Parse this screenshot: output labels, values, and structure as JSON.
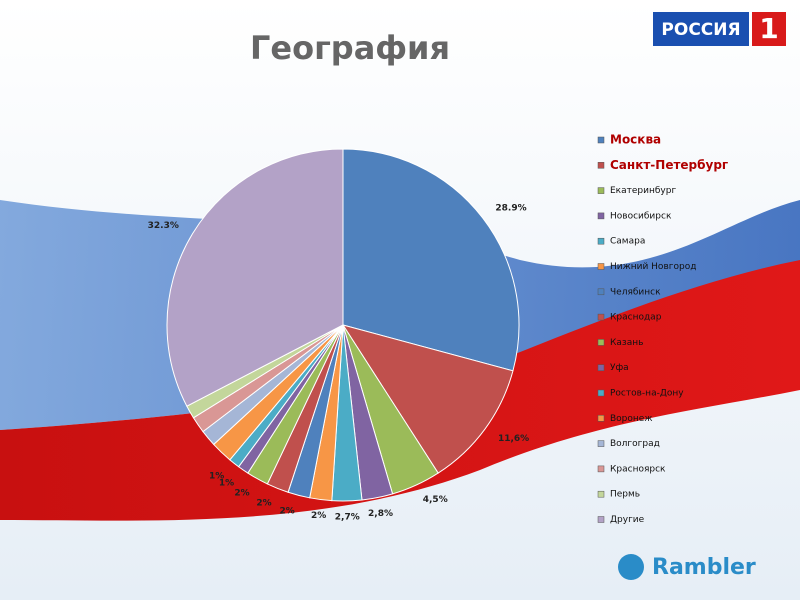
{
  "chart_data": {
    "type": "pie",
    "title": "География",
    "categories": [
      "Москва",
      "Санкт-Петербург",
      "Екатеринбург",
      "Новосибирск",
      "Самара",
      "Нижний Новгород",
      "Челябинск",
      "Краснодар",
      "Казань",
      "Уфа",
      "Ростов-на-Дону",
      "Воронеж",
      "Волгоград",
      "Красноярск",
      "Пермь",
      "Другие"
    ],
    "values": [
      28.9,
      11.6,
      4.5,
      2.8,
      2.7,
      2,
      2,
      2,
      2,
      1,
      1,
      2,
      1.5,
      1.5,
      1.2,
      32.3
    ],
    "value_labels": [
      "28.9%",
      "11,6%",
      "4,5%",
      "2,8%",
      "2,7%",
      "2%",
      "2%",
      "2%",
      "2%",
      "1%",
      "1%",
      null,
      null,
      null,
      null,
      "32.3%"
    ],
    "colors": [
      "#4f81bd",
      "#c0504d",
      "#9bbb59",
      "#8064a2",
      "#4bacc6",
      "#f79646",
      "#4f81bd",
      "#c0504d",
      "#9bbb59",
      "#8064a2",
      "#4bacc6",
      "#f79646",
      "#a5b6d6",
      "#d99795",
      "#c3d69b",
      "#b3a2c7"
    ],
    "legend": "right"
  },
  "logos": {
    "channel": "РОССИЯ",
    "channel_number": "1",
    "partner": "Rambler"
  }
}
